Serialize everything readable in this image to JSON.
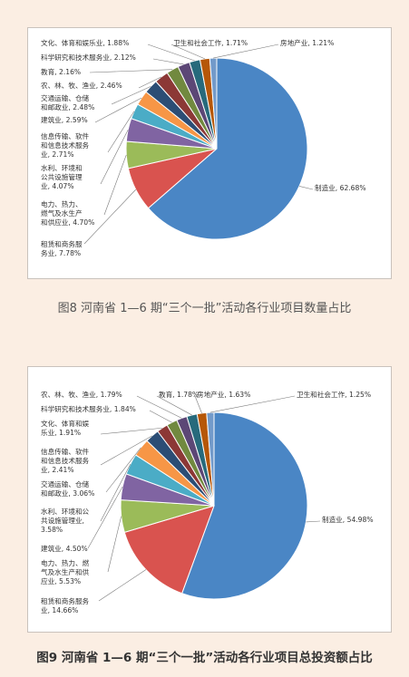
{
  "charts": [
    {
      "caption": "图8  河南省 1—6 期“三个一批”活动各行业项目数量占比"
    },
    {
      "caption": "图9  河南省 1—6 期“三个一批”活动各行业项目总投资额占比"
    }
  ],
  "chart_data": [
    {
      "type": "pie",
      "title": "",
      "slices": [
        {
          "label": "制造业",
          "value": 62.68,
          "color": "#4a86c5"
        },
        {
          "label": "租赁和商务服务业",
          "value": 7.78,
          "color": "#d9534f"
        },
        {
          "label": "电力、热力、燃气及水生产和供应业",
          "value": 4.7,
          "color": "#9bbb59"
        },
        {
          "label": "水利、环境和公共设施管理业",
          "value": 4.07,
          "color": "#8064a2"
        },
        {
          "label": "信息传输、软件和信息技术服务业",
          "value": 2.71,
          "color": "#4bacc6"
        },
        {
          "label": "建筑业",
          "value": 2.59,
          "color": "#f79646"
        },
        {
          "label": "交通运输、仓储和邮政业",
          "value": 2.48,
          "color": "#2c4d75"
        },
        {
          "label": "农、林、牧、渔业",
          "value": 2.46,
          "color": "#8c3836"
        },
        {
          "label": "教育",
          "value": 2.16,
          "color": "#71893f"
        },
        {
          "label": "科学研究和技术服务业",
          "value": 2.12,
          "color": "#5c4776"
        },
        {
          "label": "文化、体育和娱乐业",
          "value": 1.88,
          "color": "#276a7c"
        },
        {
          "label": "卫生和社会工作",
          "value": 1.71,
          "color": "#b65708"
        },
        {
          "label": "房地产业",
          "value": 1.21,
          "color": "#729aca"
        }
      ],
      "labels": [
        {
          "lines": [
            "制造业, 62.68%"
          ]
        },
        {
          "lines": [
            "租赁和商务服",
            "务业, 7.78%"
          ]
        },
        {
          "lines": [
            "电力、热力、",
            "燃气及水生产",
            "和供应业, 4.70%"
          ]
        },
        {
          "lines": [
            "水利、环境和",
            "公共设施管理",
            "业, 4.07%"
          ]
        },
        {
          "lines": [
            "信息传输、软件",
            "和信息技术服务",
            "业, 2.71%"
          ]
        },
        {
          "lines": [
            "建筑业, 2.59%"
          ]
        },
        {
          "lines": [
            "交通运输、仓储",
            "和邮政业, 2.48%"
          ]
        },
        {
          "lines": [
            "农、林、牧、渔业, 2.46%"
          ]
        },
        {
          "lines": [
            "教育, 2.16%"
          ]
        },
        {
          "lines": [
            "科学研究和技术服务业, 2.12%"
          ]
        },
        {
          "lines": [
            "文化、体育和娱乐业, 1.88%"
          ]
        },
        {
          "lines": [
            "卫生和社会工作, 1.71%"
          ]
        },
        {
          "lines": [
            "房地产业, 1.21%"
          ]
        }
      ]
    },
    {
      "type": "pie",
      "title": "",
      "slices": [
        {
          "label": "制造业",
          "value": 54.98,
          "color": "#4a86c5"
        },
        {
          "label": "租赁和商务服务业",
          "value": 14.66,
          "color": "#d9534f"
        },
        {
          "label": "电力、热力、燃气及水生产和供应业",
          "value": 5.53,
          "color": "#9bbb59"
        },
        {
          "label": "建筑业",
          "value": 4.5,
          "color": "#8064a2"
        },
        {
          "label": "水利、环境和公共设施管理业",
          "value": 3.58,
          "color": "#4bacc6"
        },
        {
          "label": "交通运输、仓储和邮政业",
          "value": 3.06,
          "color": "#f79646"
        },
        {
          "label": "信息传输、软件和信息技术服务业",
          "value": 2.41,
          "color": "#2c4d75"
        },
        {
          "label": "文化、体育和娱乐业",
          "value": 1.91,
          "color": "#8c3836"
        },
        {
          "label": "科学研究和技术服务业",
          "value": 1.84,
          "color": "#71893f"
        },
        {
          "label": "农、林、牧、渔业",
          "value": 1.79,
          "color": "#5c4776"
        },
        {
          "label": "教育",
          "value": 1.78,
          "color": "#276a7c"
        },
        {
          "label": "房地产业",
          "value": 1.63,
          "color": "#b65708"
        },
        {
          "label": "卫生和社会工作",
          "value": 1.25,
          "color": "#729aca"
        }
      ],
      "labels": [
        {
          "lines": [
            "制造业, 54.98%"
          ]
        },
        {
          "lines": [
            "租赁和商务服务",
            "业, 14.66%"
          ]
        },
        {
          "lines": [
            "电力、热力、燃",
            "气及水生产和供",
            "应业, 5.53%"
          ]
        },
        {
          "lines": [
            "建筑业, 4.50%"
          ]
        },
        {
          "lines": [
            "水利、环境和公",
            "共设施管理业,",
            "3.58%"
          ]
        },
        {
          "lines": [
            "交通运输、仓储",
            "和邮政业, 3.06%"
          ]
        },
        {
          "lines": [
            "信息传输、软件",
            "和信息技术服务",
            "业, 2.41%"
          ]
        },
        {
          "lines": [
            "文化、体育和娱",
            "乐业, 1.91%"
          ]
        },
        {
          "lines": [
            "科学研究和技术服务业, 1.84%"
          ]
        },
        {
          "lines": [
            "农、林、牧、渔业, 1.79%"
          ]
        },
        {
          "lines": [
            "教育, 1.78%"
          ]
        },
        {
          "lines": [
            "房地产业, 1.63%"
          ]
        },
        {
          "lines": [
            "卫生和社会工作, 1.25%"
          ]
        }
      ]
    }
  ]
}
